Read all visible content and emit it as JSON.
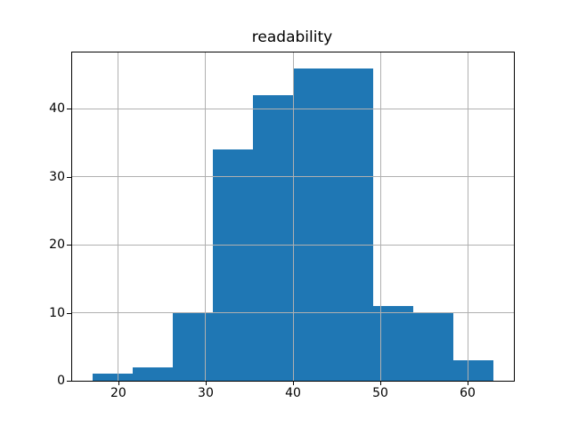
{
  "chart_data": {
    "type": "bar",
    "subtype": "histogram",
    "title": "readability",
    "bin_edges": [
      17.0,
      21.6,
      26.2,
      30.8,
      35.4,
      40.0,
      44.6,
      49.2,
      53.8,
      58.4,
      63.0
    ],
    "counts": [
      1,
      2,
      10,
      34,
      42,
      46,
      46,
      11,
      10,
      3
    ],
    "xlabel": "",
    "ylabel": "",
    "xticks": [
      20,
      30,
      40,
      50,
      60
    ],
    "yticks": [
      0,
      10,
      20,
      30,
      40
    ],
    "xlim": [
      14.7,
      65.3
    ],
    "ylim": [
      0,
      48.3
    ],
    "grid": true,
    "grid_above_bars": true,
    "legend": null,
    "colors": {
      "bar": "#1f77b4",
      "grid": "#b0b0b0",
      "axis": "#000000",
      "text": "#000000",
      "background": "#ffffff"
    }
  }
}
